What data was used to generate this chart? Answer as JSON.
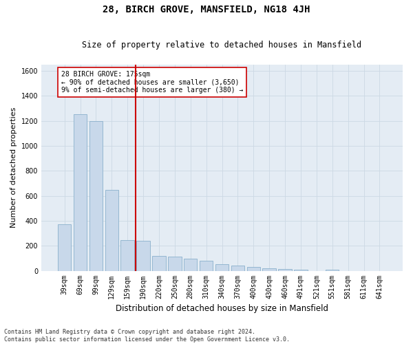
{
  "title": "28, BIRCH GROVE, MANSFIELD, NG18 4JH",
  "subtitle": "Size of property relative to detached houses in Mansfield",
  "xlabel": "Distribution of detached houses by size in Mansfield",
  "ylabel": "Number of detached properties",
  "categories": [
    "39sqm",
    "69sqm",
    "99sqm",
    "129sqm",
    "159sqm",
    "190sqm",
    "220sqm",
    "250sqm",
    "280sqm",
    "310sqm",
    "340sqm",
    "370sqm",
    "400sqm",
    "430sqm",
    "460sqm",
    "491sqm",
    "521sqm",
    "551sqm",
    "581sqm",
    "611sqm",
    "641sqm"
  ],
  "values": [
    370,
    1255,
    1200,
    650,
    245,
    240,
    120,
    115,
    95,
    80,
    50,
    40,
    28,
    18,
    12,
    8,
    0,
    8,
    0,
    0,
    0
  ],
  "bar_color": "#c8d8ea",
  "bar_edge_color": "#8ab0cc",
  "grid_color": "#ccd8e4",
  "background_color": "#e4ecf4",
  "vline_color": "#cc0000",
  "vline_pos": 4.5,
  "annotation_text": "28 BIRCH GROVE: 175sqm\n← 90% of detached houses are smaller (3,650)\n9% of semi-detached houses are larger (380) →",
  "annotation_box_facecolor": "#ffffff",
  "annotation_box_edgecolor": "#cc0000",
  "ylim": [
    0,
    1650
  ],
  "yticks": [
    0,
    200,
    400,
    600,
    800,
    1000,
    1200,
    1400,
    1600
  ],
  "title_fontsize": 10,
  "subtitle_fontsize": 8.5,
  "ylabel_fontsize": 8,
  "xlabel_fontsize": 8.5,
  "tick_fontsize": 7,
  "annot_fontsize": 7,
  "footnote": "Contains HM Land Registry data © Crown copyright and database right 2024.\nContains public sector information licensed under the Open Government Licence v3.0."
}
